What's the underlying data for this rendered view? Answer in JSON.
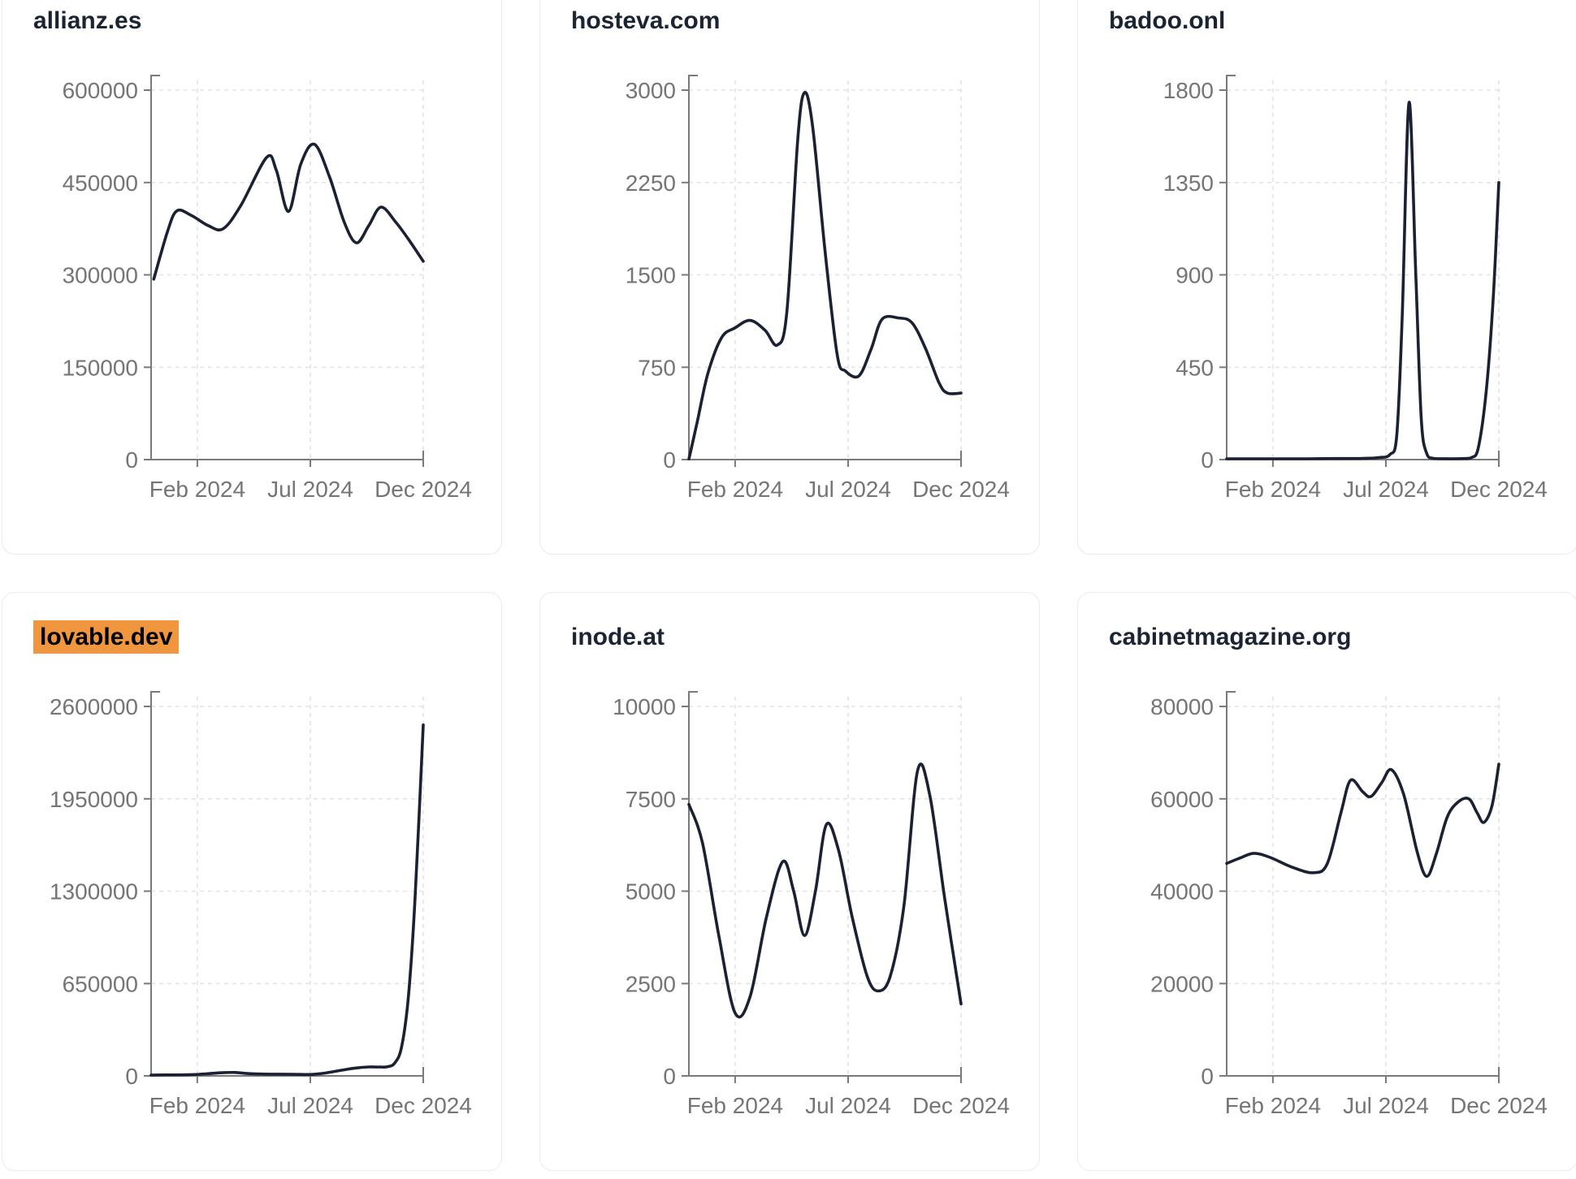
{
  "styles": {
    "line_color": "#1a2133",
    "grid_color": "#e3e3e8",
    "axis_color": "#7a7a7a",
    "tick_label_color": "#757575",
    "title_color": "#1b2433",
    "card_border_color": "#e9ebf2",
    "highlight_bg": "#f0963f",
    "highlight_text": "#000000",
    "page_bg": "#ffffff"
  },
  "chart_data": [
    {
      "type": "line",
      "title": "allianz.es",
      "highlighted": false,
      "ylim": [
        0,
        600000
      ],
      "y_ticks": [
        0,
        150000,
        300000,
        450000,
        600000
      ],
      "x_ticks": [
        {
          "label": "Feb 2024",
          "pos": 0.17
        },
        {
          "label": "Jul 2024",
          "pos": 0.585
        },
        {
          "label": "Dec 2024",
          "pos": 1.0
        }
      ],
      "grid": true,
      "points": [
        [
          0.01,
          293000
        ],
        [
          0.06,
          370000
        ],
        [
          0.095,
          404000
        ],
        [
          0.15,
          396000
        ],
        [
          0.21,
          380000
        ],
        [
          0.265,
          375000
        ],
        [
          0.33,
          413000
        ],
        [
          0.425,
          491000
        ],
        [
          0.46,
          470000
        ],
        [
          0.505,
          403000
        ],
        [
          0.55,
          480000
        ],
        [
          0.6,
          512000
        ],
        [
          0.655,
          460000
        ],
        [
          0.71,
          385000
        ],
        [
          0.755,
          352000
        ],
        [
          0.8,
          380000
        ],
        [
          0.845,
          410000
        ],
        [
          0.9,
          385000
        ],
        [
          0.95,
          355000
        ],
        [
          1.0,
          322000
        ]
      ]
    },
    {
      "type": "line",
      "title": "hosteva.com",
      "highlighted": false,
      "ylim": [
        0,
        3000
      ],
      "y_ticks": [
        0,
        750,
        1500,
        2250,
        3000
      ],
      "x_ticks": [
        {
          "label": "Feb 2024",
          "pos": 0.17
        },
        {
          "label": "Jul 2024",
          "pos": 0.585
        },
        {
          "label": "Dec 2024",
          "pos": 1.0
        }
      ],
      "grid": true,
      "points": [
        [
          0.0,
          0
        ],
        [
          0.03,
          300
        ],
        [
          0.07,
          700
        ],
        [
          0.12,
          990
        ],
        [
          0.17,
          1070
        ],
        [
          0.225,
          1130
        ],
        [
          0.28,
          1050
        ],
        [
          0.325,
          930
        ],
        [
          0.36,
          1200
        ],
        [
          0.4,
          2600
        ],
        [
          0.425,
          2980
        ],
        [
          0.455,
          2700
        ],
        [
          0.5,
          1700
        ],
        [
          0.545,
          850
        ],
        [
          0.575,
          720
        ],
        [
          0.625,
          680
        ],
        [
          0.67,
          900
        ],
        [
          0.71,
          1140
        ],
        [
          0.77,
          1150
        ],
        [
          0.82,
          1110
        ],
        [
          0.87,
          900
        ],
        [
          0.92,
          620
        ],
        [
          0.95,
          540
        ],
        [
          1.0,
          540
        ]
      ]
    },
    {
      "type": "line",
      "title": "badoo.onl",
      "highlighted": false,
      "ylim": [
        0,
        1800
      ],
      "y_ticks": [
        0,
        450,
        900,
        1350,
        1800
      ],
      "x_ticks": [
        {
          "label": "Feb 2024",
          "pos": 0.17
        },
        {
          "label": "Jul 2024",
          "pos": 0.585
        },
        {
          "label": "Dec 2024",
          "pos": 1.0
        }
      ],
      "grid": true,
      "points": [
        [
          0.0,
          4
        ],
        [
          0.1,
          4
        ],
        [
          0.2,
          4
        ],
        [
          0.3,
          4
        ],
        [
          0.4,
          5
        ],
        [
          0.5,
          6
        ],
        [
          0.56,
          10
        ],
        [
          0.6,
          25
        ],
        [
          0.625,
          120
        ],
        [
          0.645,
          700
        ],
        [
          0.67,
          1740
        ],
        [
          0.695,
          900
        ],
        [
          0.715,
          200
        ],
        [
          0.735,
          30
        ],
        [
          0.76,
          6
        ],
        [
          0.82,
          4
        ],
        [
          0.87,
          5
        ],
        [
          0.9,
          10
        ],
        [
          0.925,
          60
        ],
        [
          0.955,
          350
        ],
        [
          0.98,
          800
        ],
        [
          1.0,
          1350
        ]
      ]
    },
    {
      "type": "line",
      "title": "lovable.dev",
      "highlighted": true,
      "ylim": [
        0,
        2600000
      ],
      "y_ticks": [
        0,
        650000,
        1300000,
        1950000,
        2600000
      ],
      "x_ticks": [
        {
          "label": "Feb 2024",
          "pos": 0.17
        },
        {
          "label": "Jul 2024",
          "pos": 0.585
        },
        {
          "label": "Dec 2024",
          "pos": 1.0
        }
      ],
      "grid": true,
      "points": [
        [
          0.0,
          6000
        ],
        [
          0.08,
          7000
        ],
        [
          0.14,
          8000
        ],
        [
          0.2,
          14000
        ],
        [
          0.26,
          22000
        ],
        [
          0.31,
          24000
        ],
        [
          0.36,
          16000
        ],
        [
          0.44,
          12000
        ],
        [
          0.52,
          11000
        ],
        [
          0.585,
          10000
        ],
        [
          0.64,
          20000
        ],
        [
          0.7,
          40000
        ],
        [
          0.75,
          55000
        ],
        [
          0.8,
          63000
        ],
        [
          0.84,
          62000
        ],
        [
          0.87,
          65000
        ],
        [
          0.895,
          90000
        ],
        [
          0.92,
          200000
        ],
        [
          0.945,
          550000
        ],
        [
          0.97,
          1250000
        ],
        [
          1.0,
          2470000
        ]
      ]
    },
    {
      "type": "line",
      "title": "inode.at",
      "highlighted": false,
      "ylim": [
        0,
        10000
      ],
      "y_ticks": [
        0,
        2500,
        5000,
        7500,
        10000
      ],
      "x_ticks": [
        {
          "label": "Feb 2024",
          "pos": 0.17
        },
        {
          "label": "Jul 2024",
          "pos": 0.585
        },
        {
          "label": "Dec 2024",
          "pos": 1.0
        }
      ],
      "grid": true,
      "points": [
        [
          0.0,
          7350
        ],
        [
          0.05,
          6300
        ],
        [
          0.11,
          3800
        ],
        [
          0.17,
          1700
        ],
        [
          0.225,
          2150
        ],
        [
          0.285,
          4300
        ],
        [
          0.345,
          5800
        ],
        [
          0.385,
          5000
        ],
        [
          0.425,
          3800
        ],
        [
          0.465,
          5000
        ],
        [
          0.505,
          6800
        ],
        [
          0.55,
          6100
        ],
        [
          0.6,
          4300
        ],
        [
          0.655,
          2700
        ],
        [
          0.695,
          2300
        ],
        [
          0.74,
          2700
        ],
        [
          0.79,
          4600
        ],
        [
          0.84,
          8250
        ],
        [
          0.885,
          7600
        ],
        [
          0.94,
          4800
        ],
        [
          1.0,
          1950
        ]
      ]
    },
    {
      "type": "line",
      "title": "cabinetmagazine.org",
      "highlighted": false,
      "ylim": [
        0,
        80000
      ],
      "y_ticks": [
        0,
        20000,
        40000,
        60000,
        80000
      ],
      "x_ticks": [
        {
          "label": "Feb 2024",
          "pos": 0.17
        },
        {
          "label": "Jul 2024",
          "pos": 0.585
        },
        {
          "label": "Dec 2024",
          "pos": 1.0
        }
      ],
      "grid": true,
      "points": [
        [
          0.0,
          46000
        ],
        [
          0.05,
          47200
        ],
        [
          0.1,
          48200
        ],
        [
          0.16,
          47300
        ],
        [
          0.24,
          45200
        ],
        [
          0.32,
          44000
        ],
        [
          0.37,
          46000
        ],
        [
          0.42,
          57000
        ],
        [
          0.455,
          64000
        ],
        [
          0.5,
          61500
        ],
        [
          0.53,
          60500
        ],
        [
          0.57,
          63500
        ],
        [
          0.605,
          66300
        ],
        [
          0.65,
          61000
        ],
        [
          0.7,
          48500
        ],
        [
          0.735,
          43200
        ],
        [
          0.77,
          48000
        ],
        [
          0.81,
          56000
        ],
        [
          0.85,
          59300
        ],
        [
          0.89,
          60000
        ],
        [
          0.92,
          57000
        ],
        [
          0.945,
          54900
        ],
        [
          0.975,
          58500
        ],
        [
          1.0,
          67500
        ]
      ]
    }
  ]
}
